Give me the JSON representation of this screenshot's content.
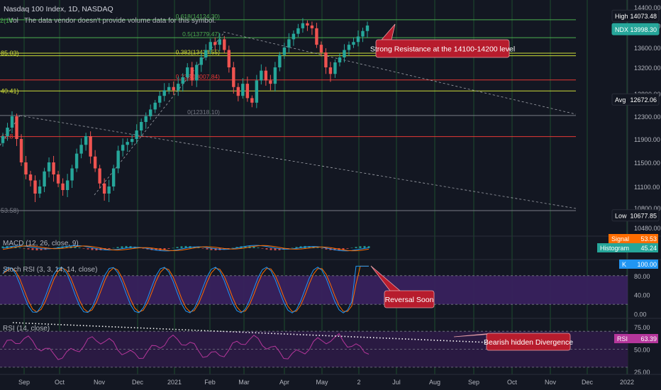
{
  "header": {
    "title": "Nasdaq 100 Index, 1D, NASDAQ",
    "vol_label": "Vol",
    "vol_notice": "The data vendor doesn't provide volume data for this symbol."
  },
  "colors": {
    "background": "#131722",
    "grid_v": "#1f5a32",
    "up": "#26a69a",
    "down": "#ef5350",
    "fib_green": "#4caf50",
    "fib_yellow": "#cddc39",
    "fib_red": "#e53935",
    "fib_gray": "#787b86",
    "callout_bg": "#b71c2d",
    "callout_border": "#e8a0a8",
    "stoch_fill": "#3b2160",
    "rsi_fill": "#2a1a42",
    "rsi_line": "#b5369b",
    "k_line": "#2196f3",
    "d_line": "#ff6d00",
    "macd_line": "#2196f3",
    "signal_line": "#ff6d00"
  },
  "chart_data": [
    {
      "type": "candlestick",
      "title": "Nasdaq 100 Index, 1D, NASDAQ",
      "x_axis_labels": [
        "Sep",
        "Oct",
        "Nov",
        "Dec",
        "2021",
        "Feb",
        "Mar",
        "Apr",
        "May",
        "2",
        "Jul",
        "Aug",
        "Sep",
        "Oct",
        "Nov",
        "Dec",
        "2022"
      ],
      "y_ticks": [
        14400,
        14000,
        13600,
        13200,
        12800,
        12300,
        11900,
        11500,
        11100,
        10800,
        10480
      ],
      "ylim": [
        10400,
        14500
      ],
      "price_labels": [
        {
          "name": "High",
          "value": "14073.48",
          "color": "#ffffff",
          "bg": "#131722"
        },
        {
          "name": "NDX",
          "value": "13998.30",
          "color": "#ffffff",
          "bg": "#26a69a"
        },
        {
          "name": "Avg",
          "value": "12672.06",
          "color": "#ffffff",
          "bg": "#131722"
        },
        {
          "name": "Low",
          "value": "10677.85",
          "color": "#ffffff",
          "bg": "#131722"
        }
      ],
      "fib_levels": [
        {
          "ratio": "0.618",
          "price": 14124.3,
          "label": "0.618(14124.30)",
          "color": "#4caf50"
        },
        {
          "ratio": "0.5",
          "price": 13779.47,
          "label": "0.5(13779.47)",
          "color": "#4caf50"
        },
        {
          "ratio": "0.382",
          "price": 13434.55,
          "label": "0.382(13434.55)",
          "color": "#cddc39"
        },
        {
          "ratio": "0.236",
          "price": 13007.84,
          "label": "0.236(13007.84)",
          "color": "#e53935"
        },
        {
          "ratio": "0",
          "price": 12318.1,
          "label": "0(12318.10)",
          "color": "#787b86"
        }
      ],
      "left_fib_labels": [
        {
          "text": "85.03)",
          "price": 13485.03,
          "color": "#cddc39"
        },
        {
          "text": "40.41)",
          "price": 12840.41,
          "color": "#cddc39"
        },
        {
          "text": "42.8",
          "price": 11942.8,
          "color": "#e53935"
        },
        {
          "text": "53.58)",
          "price": 10753.58,
          "color": "#787b86"
        }
      ],
      "left_partial_label": "2(14",
      "annotation": "Strong Resistance at the 14100-14200 level",
      "close_series": [
        11950,
        12100,
        12300,
        11900,
        11500,
        11300,
        11200,
        11000,
        11100,
        11350,
        11500,
        11300,
        11150,
        11050,
        11200,
        11400,
        11650,
        11800,
        11950,
        11600,
        11400,
        11150,
        11000,
        11100,
        11400,
        11700,
        11800,
        11850,
        11900,
        12050,
        12200,
        12300,
        12450,
        12600,
        12750,
        12850,
        12900,
        12850,
        12950,
        13050,
        13200,
        13000,
        13250,
        13400,
        13550,
        13700,
        13650,
        13750,
        13550,
        13200,
        12900,
        12750,
        12950,
        12700,
        12600,
        13000,
        13150,
        13000,
        12950,
        13200,
        13450,
        13600,
        13750,
        13850,
        13950,
        14050,
        14000,
        13950,
        13650,
        13500,
        13200,
        13100,
        13300,
        13400,
        13550,
        13650,
        13700,
        13800,
        13900,
        14000
      ]
    },
    {
      "type": "line",
      "title": "MACD (12, 26, close, 9)",
      "series": [
        {
          "name": "Signal",
          "last": "53.53"
        },
        {
          "name": "Histogram",
          "last": "45.24"
        }
      ]
    },
    {
      "type": "line",
      "title": "Stoch RSI (3, 3, 14, 14, close)",
      "y_ticks": [
        80,
        40,
        0
      ],
      "y_tick_labels": [
        "80.00",
        "40.00",
        "0.00"
      ],
      "ylim": [
        -8,
        108
      ],
      "band": [
        20,
        80
      ],
      "series": [
        {
          "name": "K",
          "last": "100.00"
        }
      ],
      "annotation": "Reversal Soon"
    },
    {
      "type": "line",
      "title": "RSI (14, close)",
      "y_ticks": [
        75,
        50,
        25
      ],
      "y_tick_labels": [
        "75.00",
        "50.00",
        "25.00"
      ],
      "ylim": [
        22,
        82
      ],
      "band": [
        30,
        70
      ],
      "series": [
        {
          "name": "RSI",
          "last": "63.39"
        }
      ],
      "annotation": "Bearish hidden Divergence"
    }
  ]
}
